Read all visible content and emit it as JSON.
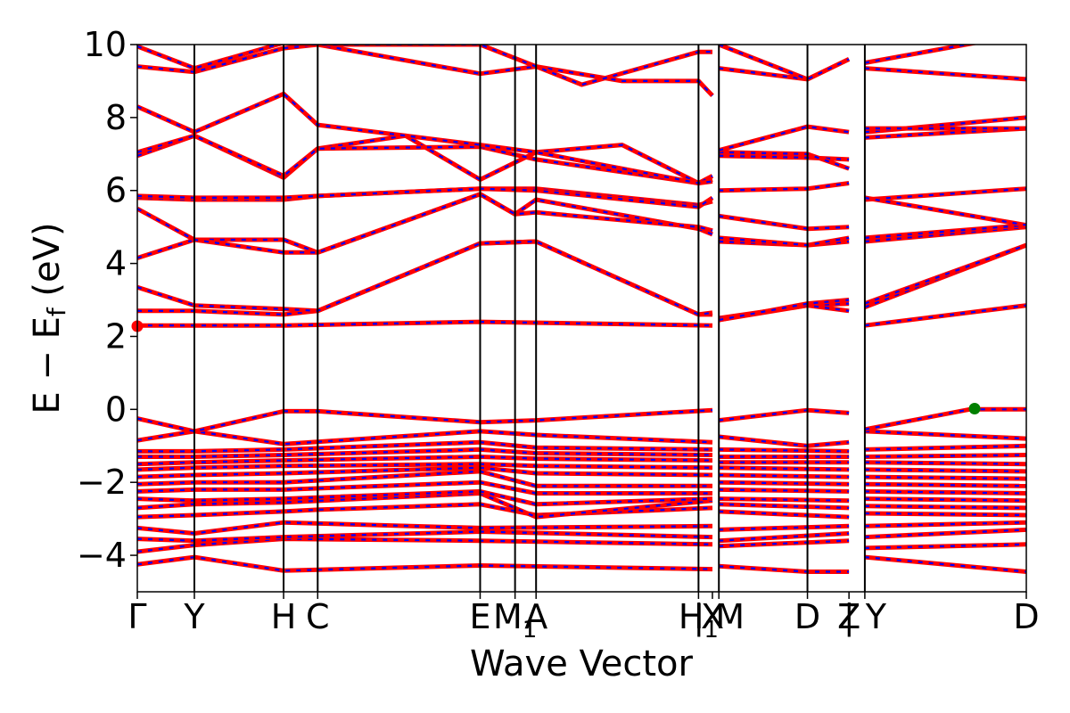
{
  "chart_data": {
    "type": "line",
    "xlabel": "Wave Vector",
    "ylabel_main": "E − E",
    "ylabel_sub": "f",
    "ylabel_unit": " (eV)",
    "ylim": [
      -5,
      10
    ],
    "yticks": [
      -4,
      -2,
      0,
      2,
      4,
      6,
      8,
      10
    ],
    "ytick_labels": [
      "−4",
      "−2",
      "0",
      "2",
      "4",
      "6",
      "8",
      "10"
    ],
    "grid": false,
    "legend": "none",
    "colors": {
      "band_main": "#ff0000",
      "band_overlay": "#0000ff",
      "marker_cbm": "#ff0000",
      "marker_vbm": "#008000",
      "divider": "#000000"
    },
    "kpath": [
      {
        "label": "Γ",
        "x": 0.0
      },
      {
        "label": "Y",
        "x": 0.353
      },
      {
        "label": "H",
        "x": 0.905
      },
      {
        "label": "C",
        "x": 1.116
      },
      {
        "label": "E",
        "x": 2.121
      },
      {
        "label": "M",
        "sub": "1",
        "x": 2.337
      },
      {
        "label": "A",
        "x": 2.467
      },
      {
        "label": "H",
        "sub": "1",
        "x": 3.472
      },
      {
        "label": "X",
        "x": 3.558
      },
      {
        "label": "| M",
        "x": 3.598
      },
      {
        "label": "D",
        "x": 4.146
      },
      {
        "label": "Z",
        "x": 4.403
      },
      {
        "label": "| Y",
        "x": 4.501
      },
      {
        "label": "D",
        "x": 5.5
      }
    ],
    "dividers": [
      0.353,
      0.905,
      1.116,
      2.121,
      2.337,
      2.467,
      3.472,
      3.598,
      4.146,
      4.501
    ],
    "xlim": [
      0,
      5.5
    ],
    "segments": [
      [
        0.0,
        3.558
      ],
      [
        3.598,
        4.403
      ],
      [
        4.501,
        5.5
      ]
    ],
    "band_knots": [
      [
        [
          0,
          -4.25
        ],
        [
          0.353,
          -4.05
        ],
        [
          0.905,
          -4.42
        ],
        [
          2.121,
          -4.28
        ],
        [
          3.558,
          -4.38
        ],
        [
          3.598,
          -4.3
        ],
        [
          4.146,
          -4.45
        ],
        [
          4.403,
          -4.45
        ],
        [
          4.501,
          -4.05
        ],
        [
          5.5,
          -4.45
        ]
      ],
      [
        [
          0,
          -3.9
        ],
        [
          0.353,
          -3.72
        ],
        [
          0.905,
          -3.55
        ],
        [
          2.121,
          -3.6
        ],
        [
          3.558,
          -3.7
        ],
        [
          3.598,
          -3.75
        ],
        [
          4.403,
          -3.6
        ],
        [
          4.501,
          -3.8
        ],
        [
          5.5,
          -3.7
        ]
      ],
      [
        [
          0,
          -3.55
        ],
        [
          0.353,
          -3.6
        ],
        [
          0.905,
          -3.5
        ],
        [
          2.121,
          -3.35
        ],
        [
          3.558,
          -3.5
        ],
        [
          3.598,
          -3.6
        ],
        [
          4.403,
          -3.4
        ],
        [
          4.501,
          -3.5
        ],
        [
          5.5,
          -3.3
        ]
      ],
      [
        [
          0,
          -3.25
        ],
        [
          0.353,
          -3.4
        ],
        [
          0.905,
          -3.1
        ],
        [
          2.121,
          -3.25
        ],
        [
          3.558,
          -3.2
        ],
        [
          3.598,
          -3.3
        ],
        [
          4.403,
          -3.2
        ],
        [
          4.501,
          -3.2
        ],
        [
          5.5,
          -3.1
        ]
      ],
      [
        [
          0,
          -2.95
        ],
        [
          0.353,
          -2.9
        ],
        [
          0.905,
          -2.8
        ],
        [
          1.116,
          -2.75
        ],
        [
          2.121,
          -2.6
        ],
        [
          2.467,
          -2.9
        ],
        [
          3.558,
          -2.7
        ],
        [
          3.598,
          -2.8
        ],
        [
          4.403,
          -2.95
        ],
        [
          4.501,
          -2.85
        ],
        [
          5.5,
          -2.9
        ]
      ],
      [
        [
          0,
          -2.7
        ],
        [
          0.353,
          -2.6
        ],
        [
          0.905,
          -2.55
        ],
        [
          2.121,
          -2.3
        ],
        [
          2.467,
          -2.95
        ],
        [
          3.558,
          -2.5
        ],
        [
          3.598,
          -2.6
        ],
        [
          4.403,
          -2.7
        ],
        [
          4.501,
          -2.65
        ],
        [
          5.5,
          -2.7
        ]
      ],
      [
        [
          0,
          -2.45
        ],
        [
          0.353,
          -2.5
        ],
        [
          0.905,
          -2.45
        ],
        [
          2.121,
          -2.25
        ],
        [
          2.467,
          -2.6
        ],
        [
          3.558,
          -2.45
        ],
        [
          3.598,
          -2.45
        ],
        [
          4.403,
          -2.5
        ],
        [
          4.501,
          -2.45
        ],
        [
          5.5,
          -2.5
        ]
      ],
      [
        [
          0,
          -2.25
        ],
        [
          0.353,
          -2.2
        ],
        [
          0.905,
          -2.2
        ],
        [
          2.121,
          -2.0
        ],
        [
          2.467,
          -2.3
        ],
        [
          3.558,
          -2.3
        ],
        [
          3.598,
          -2.2
        ],
        [
          4.403,
          -2.25
        ],
        [
          4.501,
          -2.25
        ],
        [
          5.5,
          -2.3
        ]
      ],
      [
        [
          0,
          -2.05
        ],
        [
          0.353,
          -2.0
        ],
        [
          0.905,
          -2.0
        ],
        [
          2.121,
          -1.7
        ],
        [
          2.467,
          -2.1
        ],
        [
          3.558,
          -2.1
        ],
        [
          3.598,
          -2.0
        ],
        [
          4.403,
          -2.05
        ],
        [
          4.501,
          -2.05
        ],
        [
          5.5,
          -2.1
        ]
      ],
      [
        [
          0,
          -1.85
        ],
        [
          0.353,
          -1.8
        ],
        [
          0.905,
          -1.75
        ],
        [
          2.121,
          -1.6
        ],
        [
          2.467,
          -1.75
        ],
        [
          3.558,
          -1.8
        ],
        [
          3.598,
          -1.8
        ],
        [
          4.403,
          -1.85
        ],
        [
          4.501,
          -1.85
        ],
        [
          5.5,
          -1.9
        ]
      ],
      [
        [
          0,
          -1.65
        ],
        [
          0.353,
          -1.6
        ],
        [
          0.905,
          -1.55
        ],
        [
          2.121,
          -1.5
        ],
        [
          2.467,
          -1.55
        ],
        [
          3.558,
          -1.6
        ],
        [
          3.598,
          -1.6
        ],
        [
          4.403,
          -1.65
        ],
        [
          4.501,
          -1.65
        ],
        [
          5.5,
          -1.7
        ]
      ],
      [
        [
          0,
          -1.5
        ],
        [
          0.353,
          -1.45
        ],
        [
          0.905,
          -1.4
        ],
        [
          2.121,
          -1.3
        ],
        [
          2.467,
          -1.35
        ],
        [
          3.558,
          -1.4
        ],
        [
          3.598,
          -1.45
        ],
        [
          4.403,
          -1.45
        ],
        [
          4.501,
          -1.45
        ],
        [
          5.5,
          -1.5
        ]
      ],
      [
        [
          0,
          -1.3
        ],
        [
          0.353,
          -1.3
        ],
        [
          0.905,
          -1.25
        ],
        [
          2.121,
          -1.1
        ],
        [
          2.467,
          -1.2
        ],
        [
          3.558,
          -1.25
        ],
        [
          3.598,
          -1.3
        ],
        [
          4.403,
          -1.3
        ],
        [
          4.501,
          -1.3
        ],
        [
          5.5,
          -1.25
        ]
      ],
      [
        [
          0,
          -1.15
        ],
        [
          0.353,
          -1.15
        ],
        [
          0.905,
          -1.1
        ],
        [
          2.121,
          -0.9
        ],
        [
          2.467,
          -1.05
        ],
        [
          3.558,
          -1.1
        ],
        [
          3.598,
          -1.1
        ],
        [
          4.403,
          -1.15
        ],
        [
          4.501,
          -1.1
        ],
        [
          5.5,
          -1.0
        ]
      ],
      [
        [
          0,
          -0.85
        ],
        [
          0.353,
          -0.6
        ],
        [
          0.905,
          -0.95
        ],
        [
          2.121,
          -0.6
        ],
        [
          2.467,
          -0.7
        ],
        [
          3.558,
          -0.9
        ],
        [
          3.598,
          -0.75
        ],
        [
          4.146,
          -1.0
        ],
        [
          4.403,
          -0.9
        ],
        [
          4.501,
          -0.6
        ],
        [
          5.5,
          -0.8
        ]
      ],
      [
        [
          0,
          -0.25
        ],
        [
          0.353,
          -0.6
        ],
        [
          0.905,
          -0.05
        ],
        [
          1.116,
          -0.05
        ],
        [
          2.121,
          -0.35
        ],
        [
          2.467,
          -0.3
        ],
        [
          3.558,
          -0.02
        ],
        [
          3.598,
          -0.3
        ],
        [
          4.146,
          -0.02
        ],
        [
          4.403,
          -0.1
        ],
        [
          4.501,
          -0.55
        ],
        [
          5.15,
          0.0
        ],
        [
          5.5,
          0.0
        ]
      ],
      [
        [
          0,
          2.3
        ],
        [
          0.353,
          2.3
        ],
        [
          0.905,
          2.3
        ],
        [
          2.121,
          2.4
        ],
        [
          3.558,
          2.3
        ],
        [
          3.598,
          2.45
        ],
        [
          4.146,
          2.85
        ],
        [
          4.403,
          2.9
        ],
        [
          4.501,
          2.3
        ],
        [
          5.5,
          2.85
        ]
      ],
      [
        [
          0,
          2.7
        ],
        [
          0.353,
          2.7
        ],
        [
          0.905,
          2.6
        ],
        [
          1.116,
          2.7
        ],
        [
          2.121,
          4.55
        ],
        [
          2.467,
          4.6
        ],
        [
          3.472,
          2.6
        ],
        [
          3.558,
          2.6
        ],
        [
          3.598,
          2.5
        ],
        [
          4.146,
          2.85
        ],
        [
          4.403,
          2.7
        ],
        [
          4.501,
          2.8
        ],
        [
          5.5,
          4.5
        ]
      ],
      [
        [
          0,
          3.35
        ],
        [
          0.353,
          2.85
        ],
        [
          0.905,
          2.75
        ],
        [
          1.116,
          2.7
        ],
        [
          2.121,
          4.55
        ],
        [
          2.467,
          4.6
        ],
        [
          3.472,
          2.6
        ],
        [
          3.558,
          2.65
        ],
        [
          3.598,
          2.45
        ],
        [
          4.146,
          2.9
        ],
        [
          4.403,
          3.0
        ],
        [
          4.501,
          2.9
        ],
        [
          5.5,
          4.5
        ]
      ],
      [
        [
          0,
          4.15
        ],
        [
          0.353,
          4.65
        ],
        [
          0.905,
          4.65
        ],
        [
          1.116,
          4.3
        ],
        [
          2.121,
          5.9
        ],
        [
          2.337,
          5.35
        ],
        [
          2.467,
          5.75
        ],
        [
          3.472,
          4.95
        ],
        [
          3.558,
          4.8
        ],
        [
          3.598,
          4.6
        ],
        [
          4.146,
          4.5
        ],
        [
          4.403,
          4.6
        ],
        [
          4.501,
          4.6
        ],
        [
          5.5,
          5.0
        ]
      ],
      [
        [
          0,
          5.5
        ],
        [
          0.353,
          4.65
        ],
        [
          0.905,
          4.3
        ],
        [
          1.116,
          4.3
        ],
        [
          2.121,
          5.9
        ],
        [
          2.337,
          5.35
        ],
        [
          2.467,
          5.4
        ],
        [
          3.472,
          5.0
        ],
        [
          3.558,
          4.9
        ],
        [
          3.598,
          4.7
        ],
        [
          4.146,
          4.5
        ],
        [
          4.403,
          4.7
        ],
        [
          4.501,
          4.7
        ],
        [
          5.5,
          5.05
        ]
      ],
      [
        [
          0,
          5.8
        ],
        [
          0.353,
          5.75
        ],
        [
          0.905,
          5.75
        ],
        [
          1.116,
          5.85
        ],
        [
          2.121,
          6.05
        ],
        [
          2.467,
          6.05
        ],
        [
          3.472,
          5.6
        ],
        [
          3.558,
          5.7
        ],
        [
          3.598,
          6.0
        ],
        [
          4.146,
          6.05
        ],
        [
          4.403,
          6.2
        ],
        [
          4.501,
          5.75
        ],
        [
          5.5,
          6.05
        ]
      ],
      [
        [
          0,
          5.85
        ],
        [
          0.353,
          5.8
        ],
        [
          0.905,
          5.8
        ],
        [
          1.116,
          5.85
        ],
        [
          2.121,
          6.05
        ],
        [
          2.467,
          6.0
        ],
        [
          3.472,
          5.55
        ],
        [
          3.558,
          5.8
        ],
        [
          3.598,
          5.3
        ],
        [
          4.146,
          4.95
        ],
        [
          4.403,
          5.0
        ],
        [
          4.501,
          5.8
        ],
        [
          5.5,
          5.05
        ]
      ],
      [
        [
          0,
          6.95
        ],
        [
          0.353,
          7.5
        ],
        [
          0.905,
          6.35
        ],
        [
          1.116,
          7.15
        ],
        [
          1.66,
          7.5
        ],
        [
          2.121,
          6.3
        ],
        [
          2.467,
          7.05
        ],
        [
          3.0,
          7.25
        ],
        [
          3.472,
          6.2
        ],
        [
          3.558,
          6.3
        ],
        [
          3.598,
          6.95
        ],
        [
          4.146,
          6.9
        ],
        [
          4.403,
          6.85
        ],
        [
          4.501,
          7.45
        ],
        [
          5.5,
          7.7
        ]
      ],
      [
        [
          0,
          7.05
        ],
        [
          0.353,
          7.5
        ],
        [
          0.905,
          6.4
        ],
        [
          1.116,
          7.15
        ],
        [
          2.121,
          7.2
        ],
        [
          2.467,
          6.85
        ],
        [
          3.472,
          6.2
        ],
        [
          3.558,
          6.4
        ],
        [
          3.598,
          7.05
        ],
        [
          4.146,
          7.0
        ],
        [
          4.403,
          6.6
        ],
        [
          4.501,
          7.6
        ],
        [
          5.5,
          8.0
        ]
      ],
      [
        [
          0,
          8.3
        ],
        [
          0.353,
          7.6
        ],
        [
          0.905,
          8.65
        ],
        [
          1.116,
          7.8
        ],
        [
          2.121,
          7.25
        ],
        [
          2.467,
          7.05
        ],
        [
          3.472,
          6.2
        ],
        [
          3.558,
          6.25
        ],
        [
          3.598,
          7.1
        ],
        [
          4.146,
          7.75
        ],
        [
          4.403,
          7.6
        ],
        [
          4.501,
          7.7
        ],
        [
          5.5,
          7.7
        ]
      ],
      [
        [
          0,
          9.4
        ],
        [
          0.353,
          9.25
        ],
        [
          0.905,
          9.9
        ],
        [
          1.116,
          10.0
        ],
        [
          2.121,
          9.2
        ],
        [
          2.467,
          9.4
        ],
        [
          3.0,
          9.0
        ],
        [
          3.472,
          9.0
        ],
        [
          3.558,
          8.6
        ],
        [
          3.598,
          9.35
        ],
        [
          4.146,
          9.05
        ],
        [
          4.403,
          9.6
        ],
        [
          4.501,
          9.35
        ],
        [
          5.5,
          9.05
        ]
      ],
      [
        [
          0,
          9.95
        ],
        [
          0.353,
          9.35
        ],
        [
          0.905,
          10.05
        ],
        [
          1.116,
          10.0
        ],
        [
          2.121,
          10.0
        ],
        [
          2.467,
          9.4
        ],
        [
          2.75,
          8.9
        ],
        [
          3.472,
          9.8
        ],
        [
          3.558,
          9.8
        ],
        [
          3.598,
          10.0
        ],
        [
          4.146,
          9.05
        ],
        [
          4.403,
          9.6
        ],
        [
          4.501,
          9.5
        ],
        [
          5.5,
          10.3
        ]
      ]
    ],
    "markers": [
      {
        "name": "cbm-marker",
        "x": 0.0,
        "y": 2.28,
        "color": "#ff0000"
      },
      {
        "name": "vbm-marker",
        "x": 5.18,
        "y": 0.02,
        "color": "#008000"
      }
    ]
  }
}
